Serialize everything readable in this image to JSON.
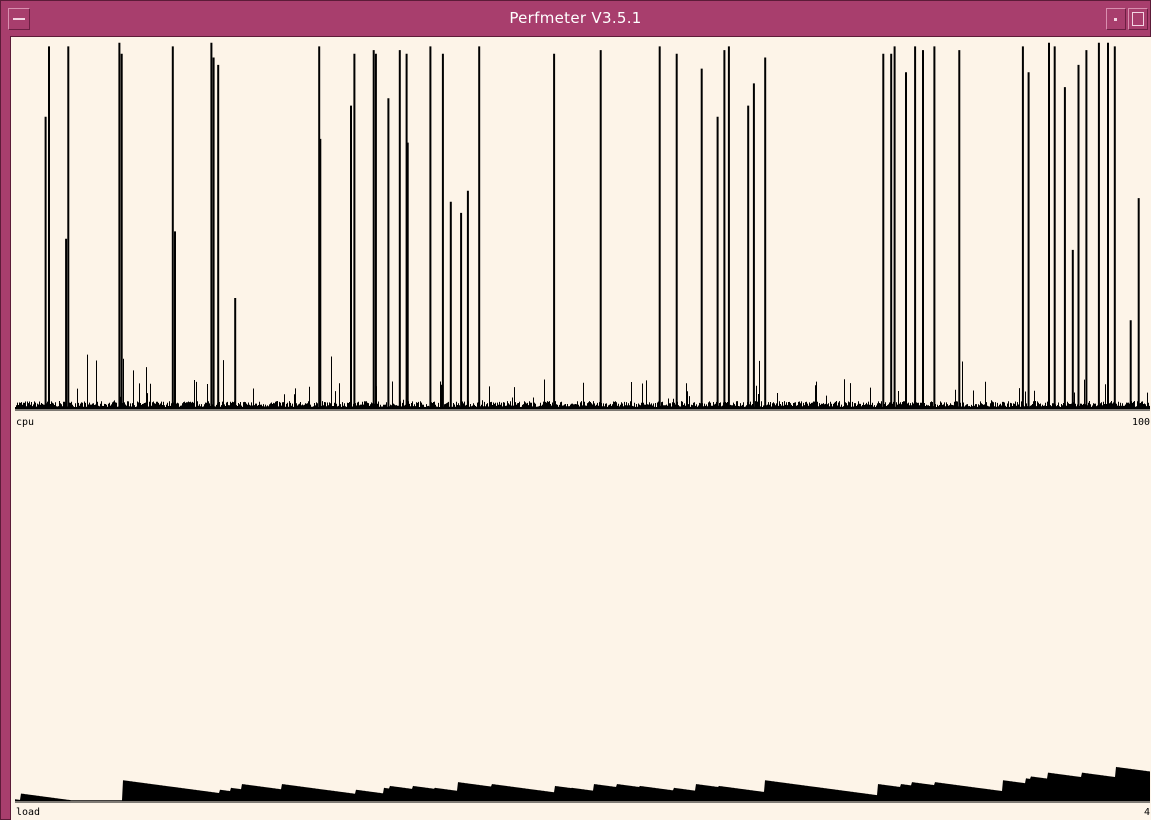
{
  "window": {
    "title": "Perfmeter V3.5.1",
    "colors": {
      "frame": "#a83e6d",
      "background": "#fdf4e8",
      "graph": "#000000"
    },
    "icons": {
      "menu": "window-menu-icon",
      "minimize": "minimize-icon",
      "maximize": "maximize-icon"
    }
  },
  "cpu": {
    "label": "cpu",
    "max_label": "100",
    "spikes": [
      {
        "x": 0.027,
        "v": 0.79
      },
      {
        "x": 0.03,
        "v": 0.98
      },
      {
        "x": 0.045,
        "v": 0.46
      },
      {
        "x": 0.047,
        "v": 0.98
      },
      {
        "x": 0.092,
        "v": 0.99
      },
      {
        "x": 0.094,
        "v": 0.96
      },
      {
        "x": 0.139,
        "v": 0.98
      },
      {
        "x": 0.141,
        "v": 0.48
      },
      {
        "x": 0.173,
        "v": 0.99
      },
      {
        "x": 0.175,
        "v": 0.95
      },
      {
        "x": 0.179,
        "v": 0.93
      },
      {
        "x": 0.194,
        "v": 0.3
      },
      {
        "x": 0.268,
        "v": 0.98
      },
      {
        "x": 0.269,
        "v": 0.73
      },
      {
        "x": 0.296,
        "v": 0.82
      },
      {
        "x": 0.299,
        "v": 0.96
      },
      {
        "x": 0.316,
        "v": 0.97
      },
      {
        "x": 0.318,
        "v": 0.96
      },
      {
        "x": 0.329,
        "v": 0.84
      },
      {
        "x": 0.339,
        "v": 0.97
      },
      {
        "x": 0.345,
        "v": 0.96
      },
      {
        "x": 0.346,
        "v": 0.72
      },
      {
        "x": 0.366,
        "v": 0.98
      },
      {
        "x": 0.377,
        "v": 0.96
      },
      {
        "x": 0.384,
        "v": 0.56
      },
      {
        "x": 0.393,
        "v": 0.53
      },
      {
        "x": 0.399,
        "v": 0.59
      },
      {
        "x": 0.409,
        "v": 0.98
      },
      {
        "x": 0.475,
        "v": 0.96
      },
      {
        "x": 0.516,
        "v": 0.97
      },
      {
        "x": 0.568,
        "v": 0.98
      },
      {
        "x": 0.583,
        "v": 0.96
      },
      {
        "x": 0.605,
        "v": 0.92
      },
      {
        "x": 0.619,
        "v": 0.79
      },
      {
        "x": 0.625,
        "v": 0.97
      },
      {
        "x": 0.629,
        "v": 0.98
      },
      {
        "x": 0.646,
        "v": 0.82
      },
      {
        "x": 0.651,
        "v": 0.88
      },
      {
        "x": 0.661,
        "v": 0.95
      },
      {
        "x": 0.765,
        "v": 0.96
      },
      {
        "x": 0.772,
        "v": 0.96
      },
      {
        "x": 0.775,
        "v": 0.98
      },
      {
        "x": 0.785,
        "v": 0.91
      },
      {
        "x": 0.793,
        "v": 0.98
      },
      {
        "x": 0.8,
        "v": 0.97
      },
      {
        "x": 0.81,
        "v": 0.98
      },
      {
        "x": 0.832,
        "v": 0.97
      },
      {
        "x": 0.888,
        "v": 0.98
      },
      {
        "x": 0.893,
        "v": 0.91
      },
      {
        "x": 0.911,
        "v": 0.99
      },
      {
        "x": 0.916,
        "v": 0.98
      },
      {
        "x": 0.925,
        "v": 0.87
      },
      {
        "x": 0.932,
        "v": 0.43
      },
      {
        "x": 0.937,
        "v": 0.93
      },
      {
        "x": 0.944,
        "v": 0.97
      },
      {
        "x": 0.955,
        "v": 0.99
      },
      {
        "x": 0.963,
        "v": 0.99
      },
      {
        "x": 0.969,
        "v": 0.98
      },
      {
        "x": 0.983,
        "v": 0.24
      },
      {
        "x": 0.99,
        "v": 0.57
      }
    ]
  },
  "load": {
    "label": "load",
    "max_label": "4"
  }
}
